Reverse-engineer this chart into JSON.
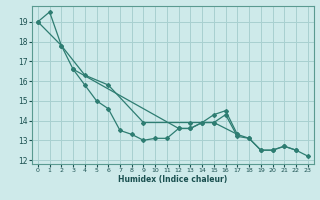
{
  "title": "",
  "xlabel": "Humidex (Indice chaleur)",
  "ylabel": "",
  "background_color": "#ceeaea",
  "grid_color": "#a8d0d0",
  "line_color": "#2e7d72",
  "xlim": [
    -0.5,
    23.5
  ],
  "ylim": [
    11.8,
    19.8
  ],
  "yticks": [
    12,
    13,
    14,
    15,
    16,
    17,
    18,
    19
  ],
  "xticks": [
    0,
    1,
    2,
    3,
    4,
    5,
    6,
    7,
    8,
    9,
    10,
    11,
    12,
    13,
    14,
    15,
    16,
    17,
    18,
    19,
    20,
    21,
    22,
    23
  ],
  "series": [
    {
      "x": [
        0,
        1,
        2,
        3,
        4,
        5,
        6,
        7,
        8,
        9,
        10,
        11,
        12,
        13,
        14,
        15,
        16,
        17,
        18,
        19,
        20,
        21,
        22
      ],
      "y": [
        19.0,
        19.5,
        17.8,
        16.6,
        15.8,
        15.0,
        14.6,
        13.5,
        13.3,
        13.0,
        13.1,
        13.1,
        13.6,
        13.6,
        13.9,
        14.3,
        14.5,
        13.3,
        13.1,
        12.5,
        12.5,
        12.7,
        12.5
      ]
    },
    {
      "x": [
        3,
        12,
        13,
        14,
        15,
        16,
        17,
        18,
        19,
        20,
        21,
        22,
        23
      ],
      "y": [
        16.6,
        13.6,
        13.6,
        13.9,
        13.9,
        14.3,
        13.2,
        13.1,
        12.5,
        12.5,
        12.7,
        12.5,
        12.2
      ]
    },
    {
      "x": [
        0,
        2,
        4,
        6,
        9,
        13,
        15,
        17
      ],
      "y": [
        19.0,
        17.8,
        16.3,
        15.8,
        13.9,
        13.9,
        13.9,
        13.3
      ]
    }
  ]
}
